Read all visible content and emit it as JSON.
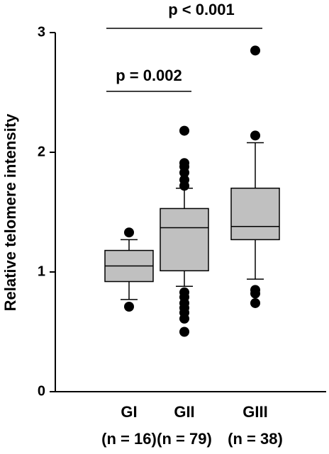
{
  "chart_data": {
    "type": "box",
    "y_label": "Relative telomere intensity",
    "categories": [
      "GI",
      "GII",
      "GIII"
    ],
    "n_labels": [
      "(n = 16)",
      "(n = 79)",
      "(n = 38)"
    ],
    "color": "#c0c0c0",
    "ylim": [
      0,
      3
    ],
    "yticks": [
      0,
      1,
      2,
      3
    ],
    "boxes": [
      {
        "min": 0.77,
        "q1": 0.92,
        "median": 1.05,
        "q3": 1.18,
        "max": 1.27,
        "outliers": [
          1.33,
          0.71
        ]
      },
      {
        "min": 0.88,
        "q1": 1.01,
        "median": 1.37,
        "q3": 1.53,
        "max": 1.7,
        "outliers": [
          2.18,
          1.91,
          1.88,
          1.83,
          1.77,
          1.72,
          0.83,
          0.79,
          0.74,
          0.7,
          0.66,
          0.61,
          0.5
        ]
      },
      {
        "min": 0.94,
        "q1": 1.27,
        "median": 1.38,
        "q3": 1.7,
        "max": 2.08,
        "outliers": [
          2.85,
          2.14,
          0.85,
          0.82,
          0.74
        ]
      }
    ],
    "annotations": [
      "p < 0.001",
      "p = 0.002"
    ]
  }
}
